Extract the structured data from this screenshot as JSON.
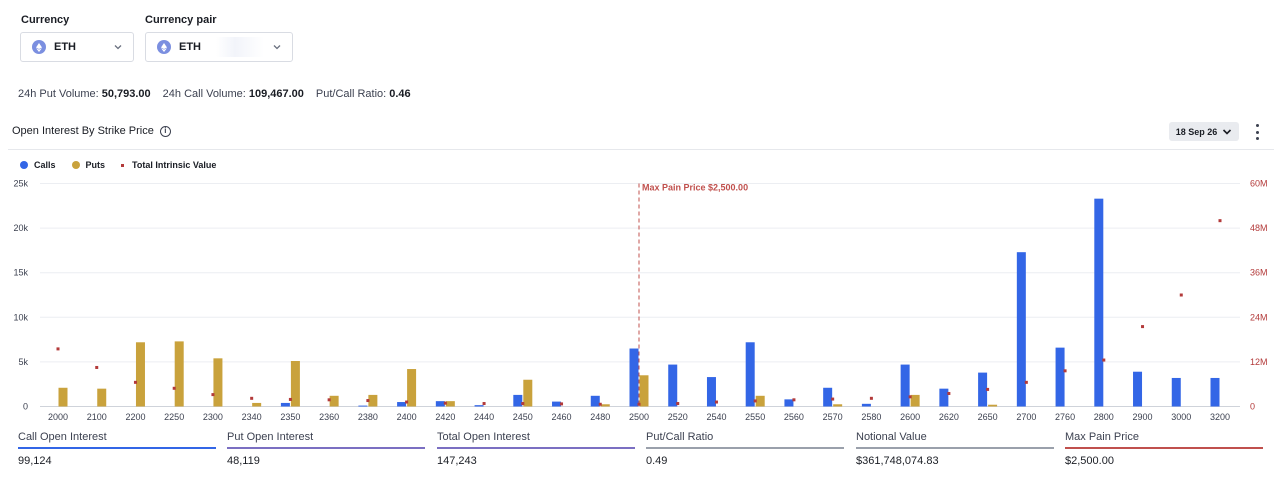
{
  "currency": {
    "label": "Currency",
    "value": "ETH"
  },
  "currency_pair": {
    "label": "Currency pair",
    "value": "ETH"
  },
  "stats": [
    {
      "label": "24h Put Volume:",
      "value": "50,793.00"
    },
    {
      "label": "24h Call Volume:",
      "value": "109,467.00"
    },
    {
      "label": "Put/Call Ratio:",
      "value": "0.46"
    }
  ],
  "open_interest": {
    "title": "Open Interest By Strike Price",
    "expiry_label": "18 Sep 26"
  },
  "legend": {
    "calls": "Calls",
    "puts": "Puts",
    "total_intrinsic": "Total Intrinsic Value"
  },
  "colors": {
    "calls": "#3366e6",
    "puts": "#c9a23c",
    "total_intrinsic": "#b33a3a",
    "max_pain_line": "#c0504d"
  },
  "chart_data": {
    "type": "bar",
    "categories": [
      "2000",
      "2100",
      "2200",
      "2250",
      "2300",
      "2340",
      "2350",
      "2360",
      "2380",
      "2400",
      "2420",
      "2440",
      "2450",
      "2460",
      "2480",
      "2500",
      "2520",
      "2540",
      "2550",
      "2560",
      "2570",
      "2580",
      "2600",
      "2620",
      "2650",
      "2700",
      "2760",
      "2800",
      "2900",
      "3000",
      "3200"
    ],
    "series": [
      {
        "name": "Calls",
        "axis": "left",
        "values": [
          0,
          0,
          0,
          0,
          0,
          0,
          400,
          0,
          100,
          500,
          600,
          150,
          1300,
          550,
          1200,
          6500,
          4700,
          3300,
          7200,
          800,
          2100,
          300,
          4700,
          2000,
          3800,
          17300,
          6600,
          23300,
          3900,
          3200,
          3200
        ]
      },
      {
        "name": "Puts",
        "axis": "left",
        "values": [
          2100,
          2000,
          7200,
          7300,
          5400,
          400,
          5100,
          1200,
          1300,
          4200,
          600,
          0,
          3000,
          0,
          250,
          3500,
          0,
          0,
          1200,
          0,
          250,
          0,
          1300,
          0,
          200,
          0,
          0,
          0,
          0,
          0,
          0
        ]
      },
      {
        "name": "Total Intrinsic Value",
        "axis": "right",
        "type": "scatter",
        "values": [
          15500000,
          10500000,
          6500000,
          4900000,
          3200000,
          2200000,
          1900000,
          1800000,
          1600000,
          1200000,
          900000,
          800000,
          800000,
          700000,
          600000,
          600000,
          800000,
          1200000,
          1500000,
          1800000,
          2000000,
          2200000,
          2600000,
          3500000,
          4600000,
          6500000,
          9600000,
          12500000,
          21500000,
          30000000,
          50000000
        ]
      }
    ],
    "left_axis": {
      "ticks": [
        "0",
        "5k",
        "10k",
        "15k",
        "20k",
        "25k"
      ],
      "min": 0,
      "max": 25000
    },
    "right_axis": {
      "ticks": [
        "0",
        "12M",
        "24M",
        "36M",
        "48M",
        "60M"
      ],
      "min": 0,
      "max": 60000000
    },
    "max_pain": {
      "label": "Max Pain Price $2,500.00",
      "strike": "2500"
    },
    "grid": true
  },
  "summary": [
    {
      "label": "Call Open Interest",
      "value": "99,124",
      "color": "#3366e6"
    },
    {
      "label": "Put Open Interest",
      "value": "48,119",
      "color": "#7b6fc2"
    },
    {
      "label": "Total Open Interest",
      "value": "147,243",
      "color": "#7b6fc2"
    },
    {
      "label": "Put/Call Ratio",
      "value": "0.49",
      "color": "#9aa0ab"
    },
    {
      "label": "Notional Value",
      "value": "$361,748,074.83",
      "color": "#9aa0ab"
    },
    {
      "label": "Max Pain Price",
      "value": "$2,500.00",
      "color": "#c0504d"
    }
  ]
}
